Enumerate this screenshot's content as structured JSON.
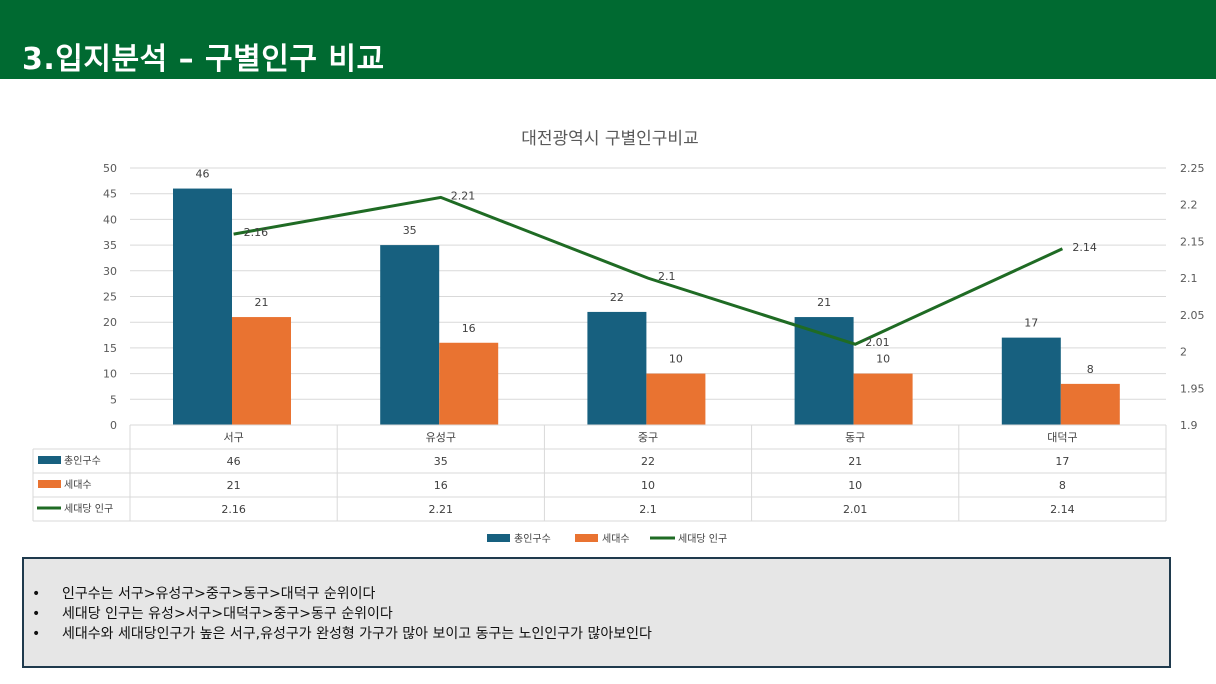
{
  "header": {
    "title": "3.입지분석 – 구별인구 비교"
  },
  "chart_data": {
    "type": "bar",
    "title": "대전광역시 구별인구비교",
    "categories": [
      "서구",
      "유성구",
      "중구",
      "동구",
      "대덕구"
    ],
    "series": [
      {
        "name": "총인구수",
        "type": "bar",
        "axis": "left",
        "color": "#17607f",
        "values": [
          46,
          35,
          22,
          21,
          17
        ]
      },
      {
        "name": "세대수",
        "type": "bar",
        "axis": "left",
        "color": "#e97331",
        "values": [
          21,
          16,
          10,
          10,
          8
        ]
      },
      {
        "name": "세대당 인구",
        "type": "line",
        "axis": "right",
        "color": "#1f6b24",
        "values": [
          2.16,
          2.21,
          2.1,
          2.01,
          2.14
        ]
      }
    ],
    "y_left": {
      "min": 0,
      "max": 50,
      "step": 5,
      "ticks": [
        "0",
        "5",
        "10",
        "15",
        "20",
        "25",
        "30",
        "35",
        "40",
        "45",
        "50"
      ]
    },
    "y_right": {
      "min": 1.9,
      "max": 2.25,
      "step": 0.05,
      "ticks": [
        "1.9",
        "1.95",
        "2",
        "2.05",
        "2.1",
        "2.15",
        "2.2",
        "2.25"
      ]
    },
    "grid": true,
    "data_table": true,
    "legend_position": "bottom"
  },
  "notes": {
    "bullet": "•",
    "items": [
      "인구수는 서구>유성구>중구>동구>대덕구  순위이다",
      "세대당 인구는 유성>서구>대덕구>중구>동구  순위이다",
      "세대수와 세대당인구가  높은 서구,유성구가  완성형  가구가 많아 보이고 동구는 노인인구가 많아보인다"
    ]
  }
}
